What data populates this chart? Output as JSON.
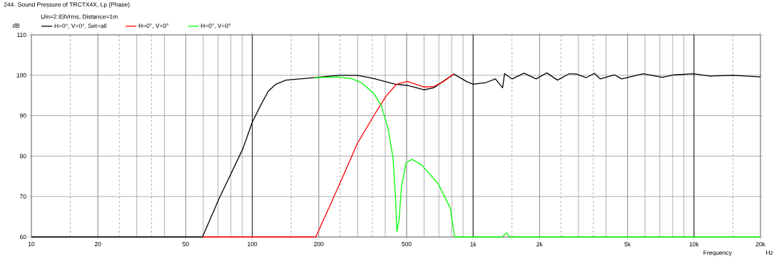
{
  "chart_data": {
    "type": "line",
    "title": "244. Sound Pressure of TRCTX4X, Lp (Phase)",
    "subtitle": "Uin=2.83Vrms, Distance=1m",
    "xlabel": "Frequency",
    "ylabel": "dB",
    "annotations": [
      "Hz"
    ],
    "log": "x",
    "xlim": [
      10,
      20000
    ],
    "ylim": [
      60,
      110
    ],
    "xticks": [
      10,
      20,
      50,
      100,
      200,
      500,
      {
        "value": 1000,
        "label": "1k"
      },
      {
        "value": 2000,
        "label": "2k"
      },
      {
        "value": 5000,
        "label": "5k"
      },
      {
        "value": 10000,
        "label": "10k"
      },
      {
        "value": 20000,
        "label": "20k"
      }
    ],
    "yticks": [
      60,
      70,
      80,
      90,
      100,
      110
    ],
    "grid": true,
    "legend": "top left",
    "marker": "none",
    "line_style": "solid",
    "series": [
      {
        "name": "H=0°, V=0°, Set=all",
        "color": "#000000",
        "x": [
          10,
          59.5,
          70.8,
          90.8,
          100,
          109,
          118,
          128,
          142,
          191,
          245,
          299,
          355,
          444,
          504,
          598,
          663,
          818,
          938,
          1000,
          1143,
          1262,
          1360,
          1388,
          1502,
          1702,
          1929,
          2155,
          2410,
          2728,
          2940,
          3246,
          3540,
          3767,
          4373,
          4713,
          5891,
          7190,
          8131,
          9929,
          11810,
          15140,
          20000
        ],
        "values": [
          60,
          60,
          69.5,
          81.9,
          88.4,
          92.5,
          96,
          97.8,
          98.8,
          99.4,
          100,
          100,
          99.2,
          97.8,
          97.5,
          96.4,
          96.9,
          100.3,
          98.4,
          97.8,
          98.2,
          99.1,
          96.9,
          100.4,
          99.1,
          100.5,
          99.1,
          100.6,
          98.8,
          100.4,
          100.3,
          99.4,
          100.5,
          99.1,
          100.1,
          99.1,
          100.4,
          99.5,
          100.1,
          100.4,
          99.8,
          100,
          99.6
        ]
      },
      {
        "name": "H=0°, V=0°",
        "color": "#ff0000",
        "x": [
          59.5,
          194,
          251,
          299,
          356,
          403,
          450,
          504,
          600,
          663,
          731,
          818
        ],
        "values": [
          60,
          60,
          73.6,
          83.1,
          90.1,
          94.8,
          97.8,
          98.5,
          97.1,
          97.2,
          98.4,
          100.3
        ]
      },
      {
        "name": "H=0°, V=0°",
        "color": "#00ff00",
        "x": [
          191,
          245,
          284,
          314,
          356,
          384,
          413,
          434,
          445,
          452,
          462,
          474,
          498,
          530,
          585,
          696,
          788,
          824,
          1350,
          1420,
          1460,
          20000
        ],
        "values": [
          99.4,
          99.6,
          99.1,
          98.1,
          95.4,
          92.5,
          86.6,
          79.5,
          70.1,
          61.3,
          64.2,
          72.5,
          78.4,
          79.2,
          77.8,
          73.1,
          67.2,
          60,
          60,
          61,
          60,
          60
        ]
      }
    ]
  }
}
